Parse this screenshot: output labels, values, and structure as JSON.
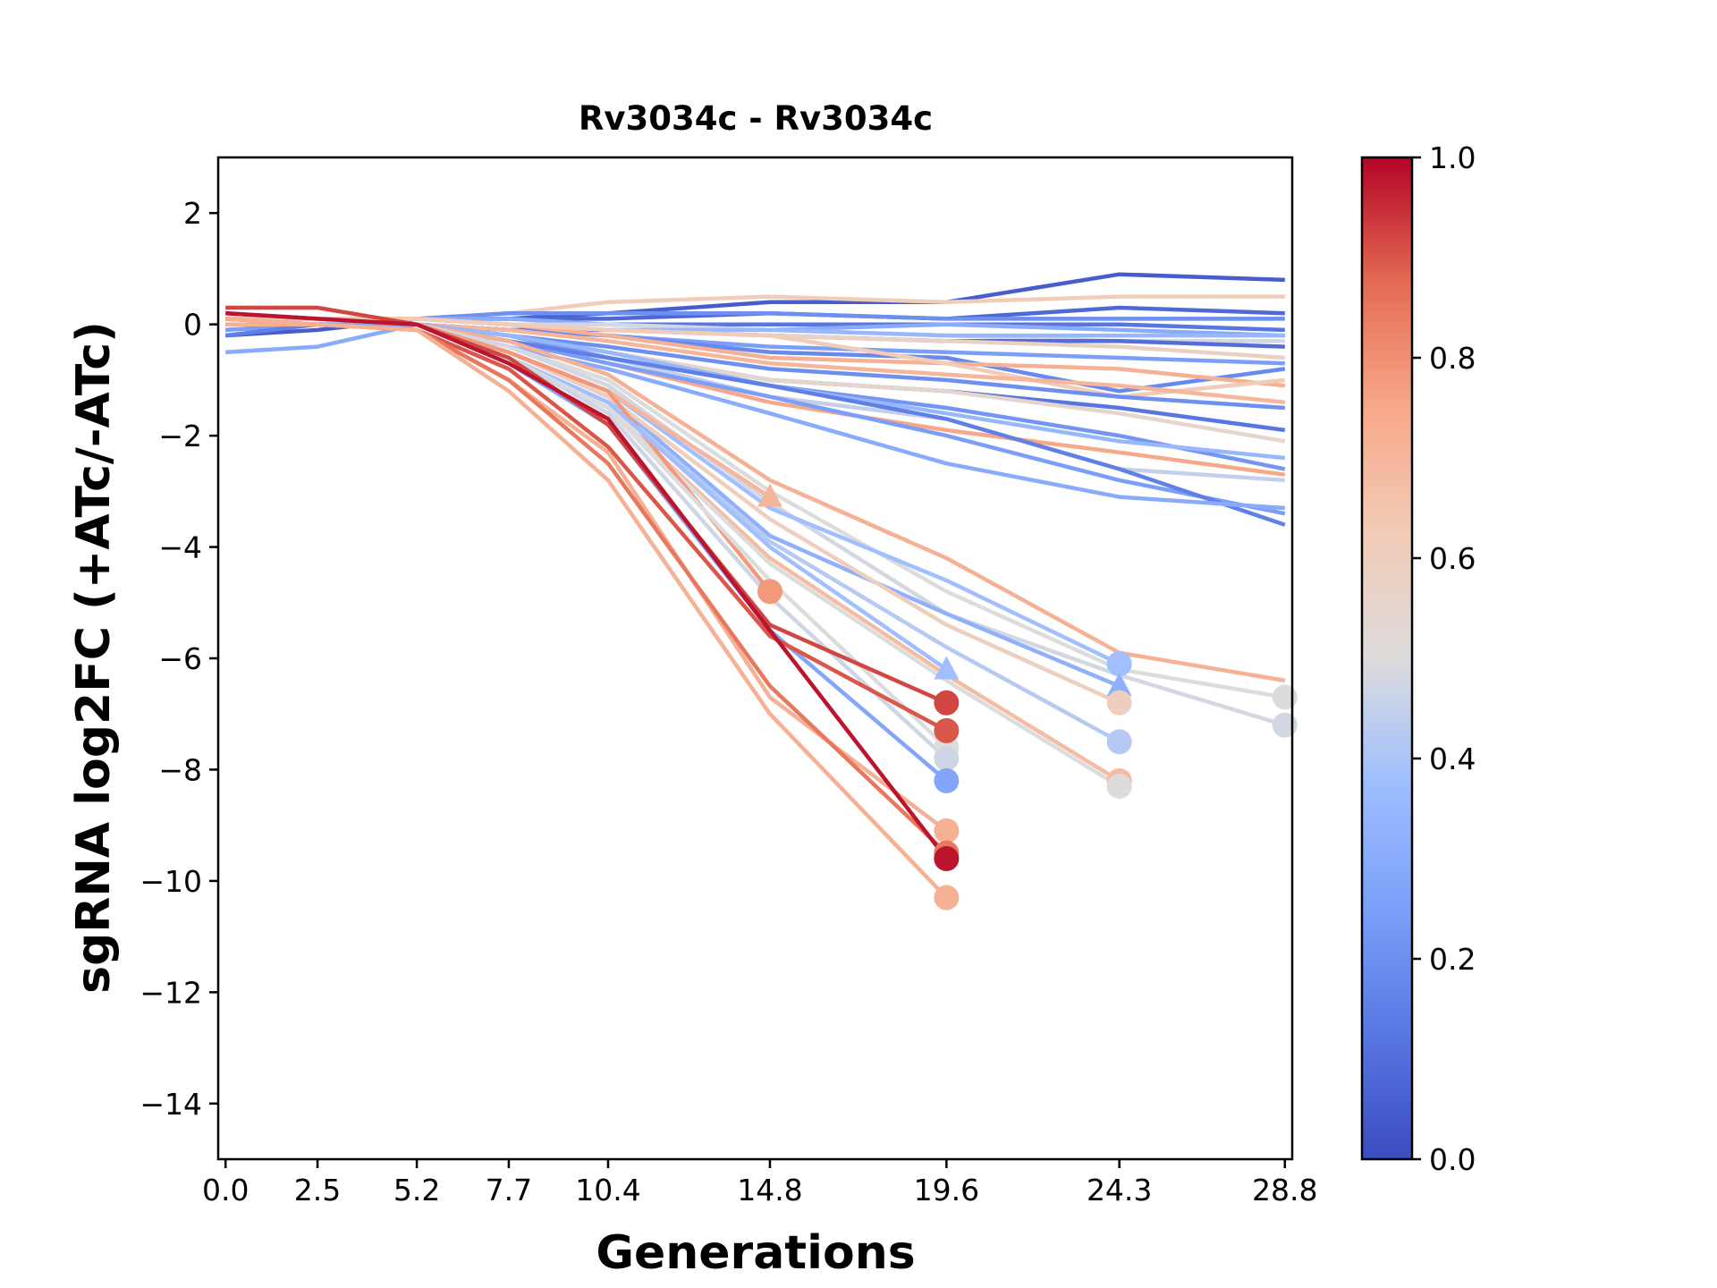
{
  "chart_data": {
    "type": "line",
    "title": "Rv3034c - Rv3034c",
    "xlabel": "Generations",
    "ylabel": "sgRNA log2FC (+ATc/-ATc)",
    "x": [
      0.0,
      2.5,
      5.2,
      7.7,
      10.4,
      14.8,
      19.6,
      24.3,
      28.8
    ],
    "x_tick_labels": [
      "0.0",
      "2.5",
      "5.2",
      "7.7",
      "10.4",
      "14.8",
      "19.6",
      "24.3",
      "28.8"
    ],
    "xlim": [
      -0.2,
      29.0
    ],
    "ylim": [
      -15,
      3
    ],
    "y_ticks": [
      2,
      0,
      -2,
      -4,
      -6,
      -8,
      -10,
      -12,
      -14
    ],
    "y_tick_labels": [
      "2",
      "0",
      "−2",
      "−4",
      "−6",
      "−8",
      "−10",
      "−12",
      "−14"
    ],
    "grid": false,
    "colorbar": {
      "colormap": "coolwarm",
      "range": [
        0.0,
        1.0
      ],
      "ticks": [
        0.0,
        0.2,
        0.4,
        0.6,
        0.8,
        1.0
      ],
      "tick_labels": [
        "0.0",
        "0.2",
        "0.4",
        "0.6",
        "0.8",
        "1.0"
      ],
      "placement": "right"
    },
    "series": [
      {
        "c": 0.05,
        "values": [
          -0.2,
          -0.1,
          0.1,
          0.1,
          0.2,
          0.4,
          0.4,
          0.9,
          0.8
        ]
      },
      {
        "c": 0.62,
        "values": [
          0.0,
          0.0,
          0.1,
          0.2,
          0.4,
          0.5,
          0.4,
          0.5,
          0.5
        ]
      },
      {
        "c": 0.08,
        "values": [
          0.0,
          0.0,
          0.1,
          0.1,
          0.1,
          0.2,
          0.1,
          0.3,
          0.2
        ]
      },
      {
        "c": 0.2,
        "values": [
          0.1,
          0.0,
          0.1,
          0.2,
          0.2,
          0.2,
          0.1,
          0.1,
          0.1
        ]
      },
      {
        "c": 0.12,
        "values": [
          -0.1,
          0.0,
          0.1,
          0.0,
          0.0,
          0.0,
          0.0,
          0.0,
          -0.1
        ]
      },
      {
        "c": 0.3,
        "values": [
          0.2,
          0.1,
          0.1,
          0.1,
          0.0,
          -0.1,
          0.0,
          -0.1,
          -0.2
        ]
      },
      {
        "c": 0.48,
        "values": [
          0.0,
          0.0,
          0.1,
          0.0,
          0.0,
          -0.1,
          -0.2,
          -0.3,
          -0.3
        ]
      },
      {
        "c": 0.35,
        "values": [
          0.1,
          0.1,
          0.1,
          0.0,
          -0.1,
          -0.1,
          -0.2,
          -0.2,
          -0.2
        ]
      },
      {
        "c": 0.1,
        "values": [
          0.0,
          0.0,
          0.0,
          -0.1,
          -0.1,
          -0.2,
          -0.3,
          -0.3,
          -0.4
        ]
      },
      {
        "c": 0.58,
        "values": [
          0.1,
          0.1,
          0.1,
          0.0,
          -0.1,
          -0.2,
          -0.3,
          -0.4,
          -0.6
        ]
      },
      {
        "c": 0.25,
        "values": [
          -0.1,
          0.0,
          0.0,
          -0.1,
          -0.2,
          -0.4,
          -0.5,
          -0.6,
          -0.7
        ]
      },
      {
        "c": 0.18,
        "values": [
          0.0,
          0.0,
          0.0,
          -0.1,
          -0.2,
          -0.5,
          -0.6,
          -1.2,
          -0.8
        ]
      },
      {
        "c": 0.72,
        "values": [
          0.1,
          0.1,
          0.1,
          0.0,
          -0.2,
          -0.6,
          -0.7,
          -0.8,
          -1.1
        ]
      },
      {
        "c": 0.62,
        "values": [
          0.1,
          0.1,
          0.1,
          0.0,
          -0.1,
          -0.2,
          -0.7,
          -1.3,
          -1.0
        ]
      },
      {
        "c": 0.2,
        "values": [
          0.0,
          0.0,
          0.0,
          -0.2,
          -0.4,
          -0.8,
          -1.0,
          -1.3,
          -1.5
        ]
      },
      {
        "c": 0.7,
        "values": [
          0.0,
          0.0,
          0.0,
          -0.1,
          -0.3,
          -0.7,
          -0.9,
          -1.1,
          -1.4
        ]
      },
      {
        "c": 0.12,
        "values": [
          0.0,
          0.0,
          0.0,
          -0.2,
          -0.5,
          -1.0,
          -1.2,
          -1.5,
          -1.9
        ]
      },
      {
        "c": 0.55,
        "values": [
          0.0,
          0.0,
          0.0,
          -0.2,
          -0.5,
          -1.0,
          -1.2,
          -1.6,
          -2.1
        ]
      },
      {
        "c": 0.22,
        "values": [
          0.0,
          0.0,
          0.0,
          -0.2,
          -0.6,
          -1.1,
          -1.5,
          -2.0,
          -2.6
        ]
      },
      {
        "c": 0.35,
        "values": [
          0.0,
          0.0,
          0.0,
          -0.2,
          -0.5,
          -1.1,
          -1.6,
          -2.1,
          -2.4
        ]
      },
      {
        "c": 0.45,
        "values": [
          0.0,
          0.0,
          0.0,
          -0.3,
          -0.6,
          -1.3,
          -1.7,
          -2.6,
          -2.8
        ]
      },
      {
        "c": 0.75,
        "values": [
          0.0,
          0.0,
          0.0,
          -0.3,
          -0.7,
          -1.4,
          -1.9,
          -2.3,
          -2.7
        ]
      },
      {
        "c": 0.25,
        "values": [
          0.0,
          0.0,
          0.0,
          -0.3,
          -0.7,
          -1.3,
          -2.0,
          -2.8,
          -3.4
        ]
      },
      {
        "c": 0.15,
        "values": [
          -0.2,
          0.0,
          0.0,
          -0.3,
          -0.6,
          -1.1,
          -1.7,
          -2.6,
          -3.6
        ]
      },
      {
        "c": 0.3,
        "values": [
          -0.5,
          -0.4,
          0.0,
          -0.4,
          -0.8,
          -1.6,
          -2.5,
          -3.1,
          -3.3
        ]
      },
      {
        "c": 0.72,
        "values": [
          0.0,
          0.0,
          0.0,
          -0.3,
          -0.9,
          -2.8,
          -4.2,
          -5.9,
          -6.4
        ],
        "end_marker": "none"
      },
      {
        "c": 0.5,
        "values": [
          0.0,
          0.0,
          0.0,
          -0.4,
          -1.0,
          -3.0,
          -4.8,
          -6.2,
          -6.7
        ],
        "end_marker": "circle"
      },
      {
        "c": 0.48,
        "values": [
          0.0,
          0.0,
          0.0,
          -0.4,
          -1.1,
          -3.2,
          -5.2,
          -6.3,
          -7.2
        ],
        "end_marker": "circle"
      },
      {
        "c": 0.38,
        "values": [
          0.0,
          0.0,
          0.0,
          -0.5,
          -1.2,
          -3.3,
          -4.6,
          -6.1
        ],
        "end_marker": "circle"
      },
      {
        "c": 0.32,
        "values": [
          0.0,
          0.0,
          0.0,
          -0.5,
          -1.3,
          -3.8,
          -5.2,
          -6.5
        ],
        "end_marker": "triangle"
      },
      {
        "c": 0.6,
        "values": [
          0.0,
          0.0,
          0.0,
          -0.5,
          -1.3,
          -3.5,
          -5.4,
          -6.8
        ],
        "end_marker": "circle"
      },
      {
        "c": 0.42,
        "values": [
          0.0,
          0.0,
          0.0,
          -0.6,
          -1.4,
          -3.9,
          -5.8,
          -7.5
        ],
        "end_marker": "circle"
      },
      {
        "c": 0.68,
        "values": [
          0.0,
          0.0,
          0.0,
          -0.6,
          -1.5,
          -4.2,
          -6.3,
          -8.2
        ],
        "end_marker": "circle"
      },
      {
        "c": 0.5,
        "values": [
          0.0,
          0.0,
          0.0,
          -0.6,
          -1.5,
          -4.3,
          -6.4,
          -8.3
        ],
        "end_marker": "circle"
      },
      {
        "c": 0.7,
        "values": [
          0.0,
          0.0,
          0.0,
          -0.5,
          -1.2,
          -3.1
        ],
        "end_marker": "triangle"
      },
      {
        "c": 0.78,
        "values": [
          0.0,
          0.0,
          0.0,
          -0.5,
          -1.2,
          -4.8
        ],
        "end_marker": "circle"
      },
      {
        "c": 0.38,
        "values": [
          0.0,
          0.0,
          0.0,
          -0.6,
          -1.4,
          -4.0,
          -6.2
        ],
        "end_marker": "triangle"
      },
      {
        "c": 0.5,
        "values": [
          0.0,
          0.0,
          0.0,
          -0.6,
          -1.5,
          -4.6,
          -7.6
        ],
        "end_marker": "circle"
      },
      {
        "c": 0.47,
        "values": [
          0.0,
          0.0,
          0.0,
          -0.6,
          -1.6,
          -4.9,
          -7.8
        ],
        "end_marker": "circle"
      },
      {
        "c": 0.28,
        "values": [
          0.0,
          0.0,
          0.0,
          -0.7,
          -1.8,
          -5.5,
          -8.2
        ],
        "end_marker": "circle"
      },
      {
        "c": 0.92,
        "values": [
          0.3,
          0.3,
          0.0,
          -0.6,
          -1.8,
          -5.4,
          -6.8
        ],
        "end_marker": "circle"
      },
      {
        "c": 0.9,
        "values": [
          0.1,
          0.0,
          -0.1,
          -0.8,
          -2.2,
          -5.6,
          -7.3
        ],
        "end_marker": "circle"
      },
      {
        "c": 0.72,
        "values": [
          0.0,
          0.0,
          -0.1,
          -1.0,
          -2.3,
          -6.7,
          -9.1
        ],
        "end_marker": "circle"
      },
      {
        "c": 0.85,
        "values": [
          0.1,
          0.0,
          -0.1,
          -1.0,
          -2.5,
          -6.5,
          -9.5
        ],
        "end_marker": "circle"
      },
      {
        "c": 0.98,
        "values": [
          0.2,
          0.1,
          0.0,
          -0.7,
          -1.7,
          -5.5,
          -9.6
        ],
        "end_marker": "circle"
      },
      {
        "c": 0.72,
        "values": [
          0.1,
          0.0,
          -0.1,
          -1.2,
          -2.8,
          -7.0,
          -10.3
        ],
        "end_marker": "circle"
      }
    ]
  }
}
